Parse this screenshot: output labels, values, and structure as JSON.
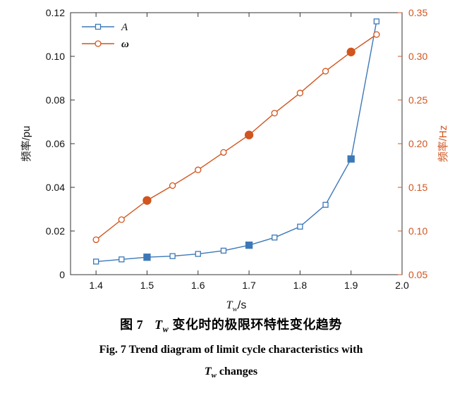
{
  "figure": {
    "caption_cn": {
      "fig_label": "图 7",
      "symbol": "T",
      "symbol_sub": "w",
      "text": "变化时的极限环特性变化趋势"
    },
    "caption_en": {
      "line1": "Fig. 7   Trend diagram of limit cycle characteristics with",
      "symbol": "T",
      "symbol_sub": "w",
      "text": "changes"
    }
  },
  "chart_data": {
    "type": "line",
    "x": [
      1.4,
      1.45,
      1.5,
      1.55,
      1.6,
      1.65,
      1.7,
      1.75,
      1.8,
      1.85,
      1.9,
      1.95
    ],
    "series": [
      {
        "name": "A",
        "axis": "left",
        "color": "#3c78b8",
        "marker": "square",
        "values": [
          0.006,
          0.007,
          0.008,
          0.0085,
          0.0095,
          0.011,
          0.0135,
          0.017,
          0.022,
          0.032,
          0.053,
          0.116
        ],
        "filled_at": [
          1.5,
          1.7,
          1.9
        ]
      },
      {
        "name": "ω",
        "axis": "right",
        "color": "#d1551f",
        "marker": "circle",
        "values": [
          0.09,
          0.113,
          0.135,
          0.152,
          0.17,
          0.19,
          0.21,
          0.235,
          0.258,
          0.283,
          0.305,
          0.325
        ],
        "filled_at": [
          1.5,
          1.7,
          1.9
        ]
      }
    ],
    "xlabel": {
      "symbol": "T",
      "sub": "w",
      "unit": "/s"
    },
    "x_axis": {
      "min": 1.35,
      "max": 2.0,
      "ticks": [
        1.4,
        1.5,
        1.6,
        1.7,
        1.8,
        1.9,
        2.0
      ]
    },
    "left_axis": {
      "label": "频率/pu",
      "min": 0,
      "max": 0.12,
      "tick_step": 0.02,
      "color": "#000000"
    },
    "right_axis": {
      "label": "频率/Hz",
      "min": 0.05,
      "max": 0.35,
      "tick_step": 0.05,
      "color": "#d1551f"
    },
    "grid": false,
    "legend_position": "top-left"
  }
}
